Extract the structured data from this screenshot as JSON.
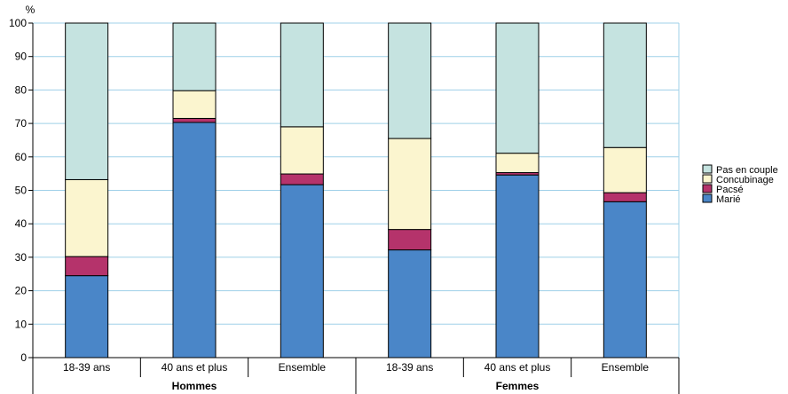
{
  "chart_data": {
    "type": "bar",
    "stacked": true,
    "ylabel": "%",
    "ylim": [
      0,
      100
    ],
    "yticks": [
      0,
      10,
      20,
      30,
      40,
      50,
      60,
      70,
      80,
      90,
      100
    ],
    "grid": true,
    "legend_position": "right",
    "categories": [
      "18-39 ans",
      "40 ans et plus",
      "Ensemble",
      "18-39 ans",
      "40 ans et plus",
      "Ensemble"
    ],
    "groups": [
      {
        "label": "Hommes",
        "count": 3
      },
      {
        "label": "Femmes",
        "count": 3
      }
    ],
    "series": [
      {
        "name": "Marié",
        "color": "#4a86c8",
        "values": [
          24.5,
          70.3,
          51.7,
          32.2,
          54.6,
          46.6
        ]
      },
      {
        "name": "Pacsé",
        "color": "#b5336b",
        "values": [
          5.7,
          1.2,
          3.2,
          6.1,
          0.7,
          2.7
        ]
      },
      {
        "name": "Concubinage",
        "color": "#fbf5cf",
        "values": [
          23.0,
          8.3,
          14.1,
          27.2,
          5.8,
          13.5
        ]
      },
      {
        "name": "Pas en couple",
        "color": "#c5e3e0",
        "values": [
          46.8,
          20.2,
          31.0,
          34.5,
          38.9,
          37.2
        ]
      }
    ]
  }
}
